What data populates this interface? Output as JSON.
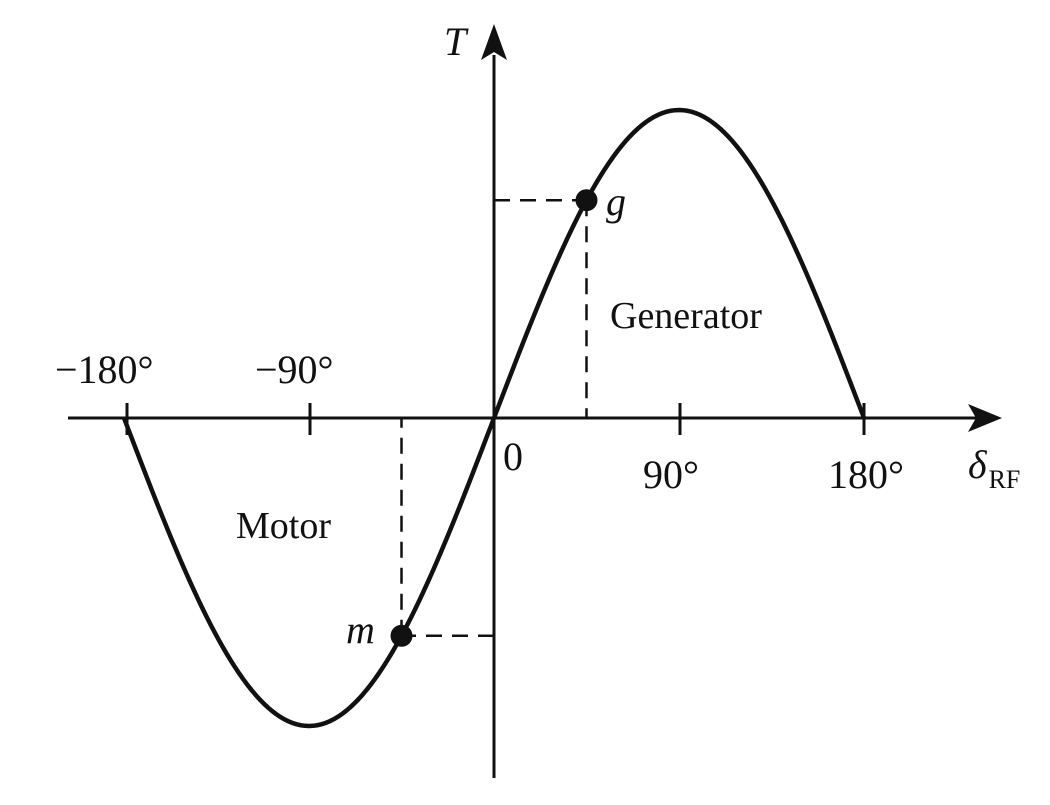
{
  "diagram": {
    "y_axis_label": "T",
    "x_axis_label": {
      "symbol": "δ",
      "subscript": "RF"
    },
    "origin_label": "0",
    "tick_labels": [
      "−180°",
      "−90°",
      "90°",
      "180°"
    ],
    "regions": {
      "generator": "Generator",
      "motor": "Motor"
    },
    "points": {
      "generator": "g",
      "motor": "m"
    },
    "curve": {
      "type": "sine",
      "x_range_deg": [
        -180,
        180
      ],
      "amplitude": 1
    },
    "point_angles_deg": {
      "generator": 45,
      "motor": -45
    },
    "colors": {
      "ink": "#111111",
      "background": "#ffffff"
    }
  }
}
